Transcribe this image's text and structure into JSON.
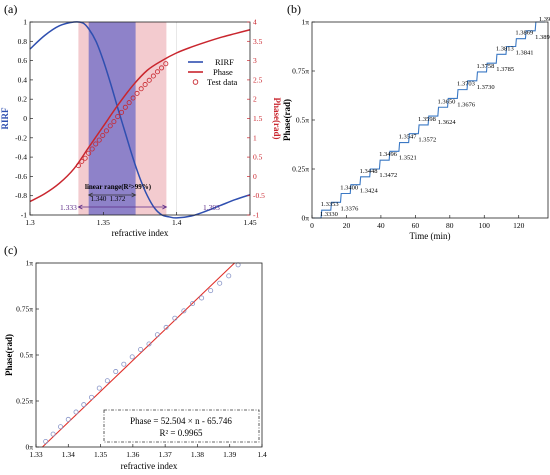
{
  "chart_data": [
    {
      "panel": "(a)",
      "type": "line",
      "xlabel": "refractive index",
      "ylabel_left": "RIRF",
      "ylabel_right": "Phase(rad)",
      "xlim": [
        1.3,
        1.45
      ],
      "ylim_left": [
        -1,
        1
      ],
      "ylim_right": [
        -1,
        4
      ],
      "x_ticks": [
        "1.3",
        "1.35",
        "1.4",
        "1.45"
      ],
      "y_left_ticks": [
        "-1",
        "-0.8",
        "-0.6",
        "-0.4",
        "-0.2",
        "0",
        "0.2",
        "0.4",
        "0.6",
        "0.8",
        "1"
      ],
      "y_right_ticks": [
        "-1",
        "-0.5",
        "0",
        "0.5",
        "1",
        "1.5",
        "2",
        "2.5",
        "3",
        "3.5",
        "4"
      ],
      "legend_position": "right",
      "colors": {
        "rirf": "#2f4fb0",
        "phase": "#c9262e",
        "purple_band": "#7b76c8",
        "pink_band": "#efb9bf",
        "annotation": "#5b2a86"
      },
      "series": [
        {
          "name": "RIRF",
          "axis": "left",
          "x": [
            1.3,
            1.31,
            1.32,
            1.33,
            1.336,
            1.34,
            1.345,
            1.35,
            1.355,
            1.36,
            1.365,
            1.37,
            1.375,
            1.38,
            1.385,
            1.39,
            1.395,
            1.4,
            1.41,
            1.42,
            1.43,
            1.44,
            1.45
          ],
          "y": [
            0.72,
            0.86,
            0.96,
            1.0,
            0.99,
            0.93,
            0.8,
            0.6,
            0.36,
            0.1,
            -0.15,
            -0.4,
            -0.62,
            -0.8,
            -0.93,
            -1.0,
            -1.02,
            -1.03,
            -1.01,
            -0.96,
            -0.9,
            -0.84,
            -0.79
          ]
        },
        {
          "name": "Phase",
          "axis": "right",
          "x": [
            1.3,
            1.31,
            1.32,
            1.33,
            1.34,
            1.35,
            1.36,
            1.37,
            1.38,
            1.39,
            1.4,
            1.41,
            1.42,
            1.43,
            1.44,
            1.45
          ],
          "y": [
            -0.65,
            -0.45,
            -0.18,
            0.2,
            0.75,
            1.3,
            1.85,
            2.35,
            2.75,
            3.0,
            3.2,
            3.35,
            3.48,
            3.6,
            3.7,
            3.8
          ]
        },
        {
          "name": "Test data",
          "axis": "right",
          "marker": "circle",
          "x": [
            1.333,
            1.3353,
            1.3376,
            1.34,
            1.3424,
            1.3448,
            1.3472,
            1.3496,
            1.3521,
            1.3547,
            1.3572,
            1.3598,
            1.3624,
            1.365,
            1.3676,
            1.3703,
            1.373,
            1.3758,
            1.3785,
            1.3813,
            1.3841,
            1.3869,
            1.3897,
            1.3926
          ],
          "y": [
            0.28,
            0.39,
            0.47,
            0.6,
            0.71,
            0.84,
            0.94,
            1.06,
            1.18,
            1.31,
            1.42,
            1.55,
            1.66,
            1.79,
            1.91,
            2.03,
            2.15,
            2.27,
            2.38,
            2.49,
            2.6,
            2.71,
            2.81,
            2.92
          ]
        }
      ],
      "bands": [
        {
          "from": 1.333,
          "to": 1.393,
          "color": "pink"
        },
        {
          "from": 1.34,
          "to": 1.372,
          "color": "purple"
        }
      ],
      "annotations": {
        "linear_range": "linear range(R²>99%)",
        "inner_left": "1.340",
        "inner_right": "1.372",
        "outer_left": "1.333",
        "outer_right": "1.393"
      }
    },
    {
      "panel": "(b)",
      "type": "line",
      "xlabel": "Time (min)",
      "ylabel": "Phase(rad)",
      "xlim": [
        0,
        137
      ],
      "ylim": [
        0,
        1
      ],
      "x_ticks": [
        "0",
        "20",
        "40",
        "60",
        "80",
        "100",
        "120"
      ],
      "y_ticks": [
        "0π",
        "0.25π",
        "0.5π",
        "0.75π",
        "1π"
      ],
      "step_duration_min": 5.65,
      "levels": [
        0.0,
        0.04,
        0.08,
        0.125,
        0.17,
        0.21,
        0.25,
        0.295,
        0.34,
        0.385,
        0.43,
        0.475,
        0.52,
        0.565,
        0.61,
        0.655,
        0.7,
        0.745,
        0.79,
        0.835,
        0.875,
        0.915,
        0.955,
        1.0
      ],
      "step_labels": [
        "1.3330",
        "1.3353",
        "1.3376",
        "1.3400",
        "1.3424",
        "1.3448",
        "1.3472",
        "1.3496",
        "1.3521",
        "1.3547",
        "1.3572",
        "1.3598",
        "1.3624",
        "1.3650",
        "1.3676",
        "1.3703",
        "1.3730",
        "1.3758",
        "1.3785",
        "1.3813",
        "1.3841",
        "1.3869",
        "1.3897",
        "1.3926"
      ]
    },
    {
      "panel": "(c)",
      "type": "scatter",
      "xlabel": "refractive index",
      "ylabel": "Phase(rad)",
      "xlim": [
        1.33,
        1.4
      ],
      "ylim": [
        0,
        1
      ],
      "x_ticks": [
        "1.33",
        "1.34",
        "1.35",
        "1.36",
        "1.37",
        "1.38",
        "1.39",
        "1.4"
      ],
      "y_ticks": [
        "0π",
        "0.25π",
        "0.5π",
        "0.75π",
        "1π"
      ],
      "points_x": [
        1.333,
        1.3353,
        1.3376,
        1.34,
        1.3424,
        1.3448,
        1.3472,
        1.3496,
        1.3521,
        1.3547,
        1.3572,
        1.3598,
        1.3624,
        1.365,
        1.3676,
        1.3703,
        1.373,
        1.3758,
        1.3785,
        1.3813,
        1.3841,
        1.3869,
        1.3897,
        1.3926
      ],
      "points_y": [
        0.03,
        0.07,
        0.11,
        0.15,
        0.19,
        0.23,
        0.27,
        0.32,
        0.36,
        0.41,
        0.45,
        0.49,
        0.53,
        0.56,
        0.61,
        0.65,
        0.7,
        0.74,
        0.78,
        0.81,
        0.85,
        0.89,
        0.93,
        0.99
      ],
      "fit_line": {
        "x": [
          1.332,
          1.3915
        ],
        "y": [
          0.0,
          1.0
        ],
        "color": "#e0312b"
      },
      "equation": "Phase = 52.504 × n - 65.746",
      "r_squared": "R² = 0.9965"
    }
  ]
}
